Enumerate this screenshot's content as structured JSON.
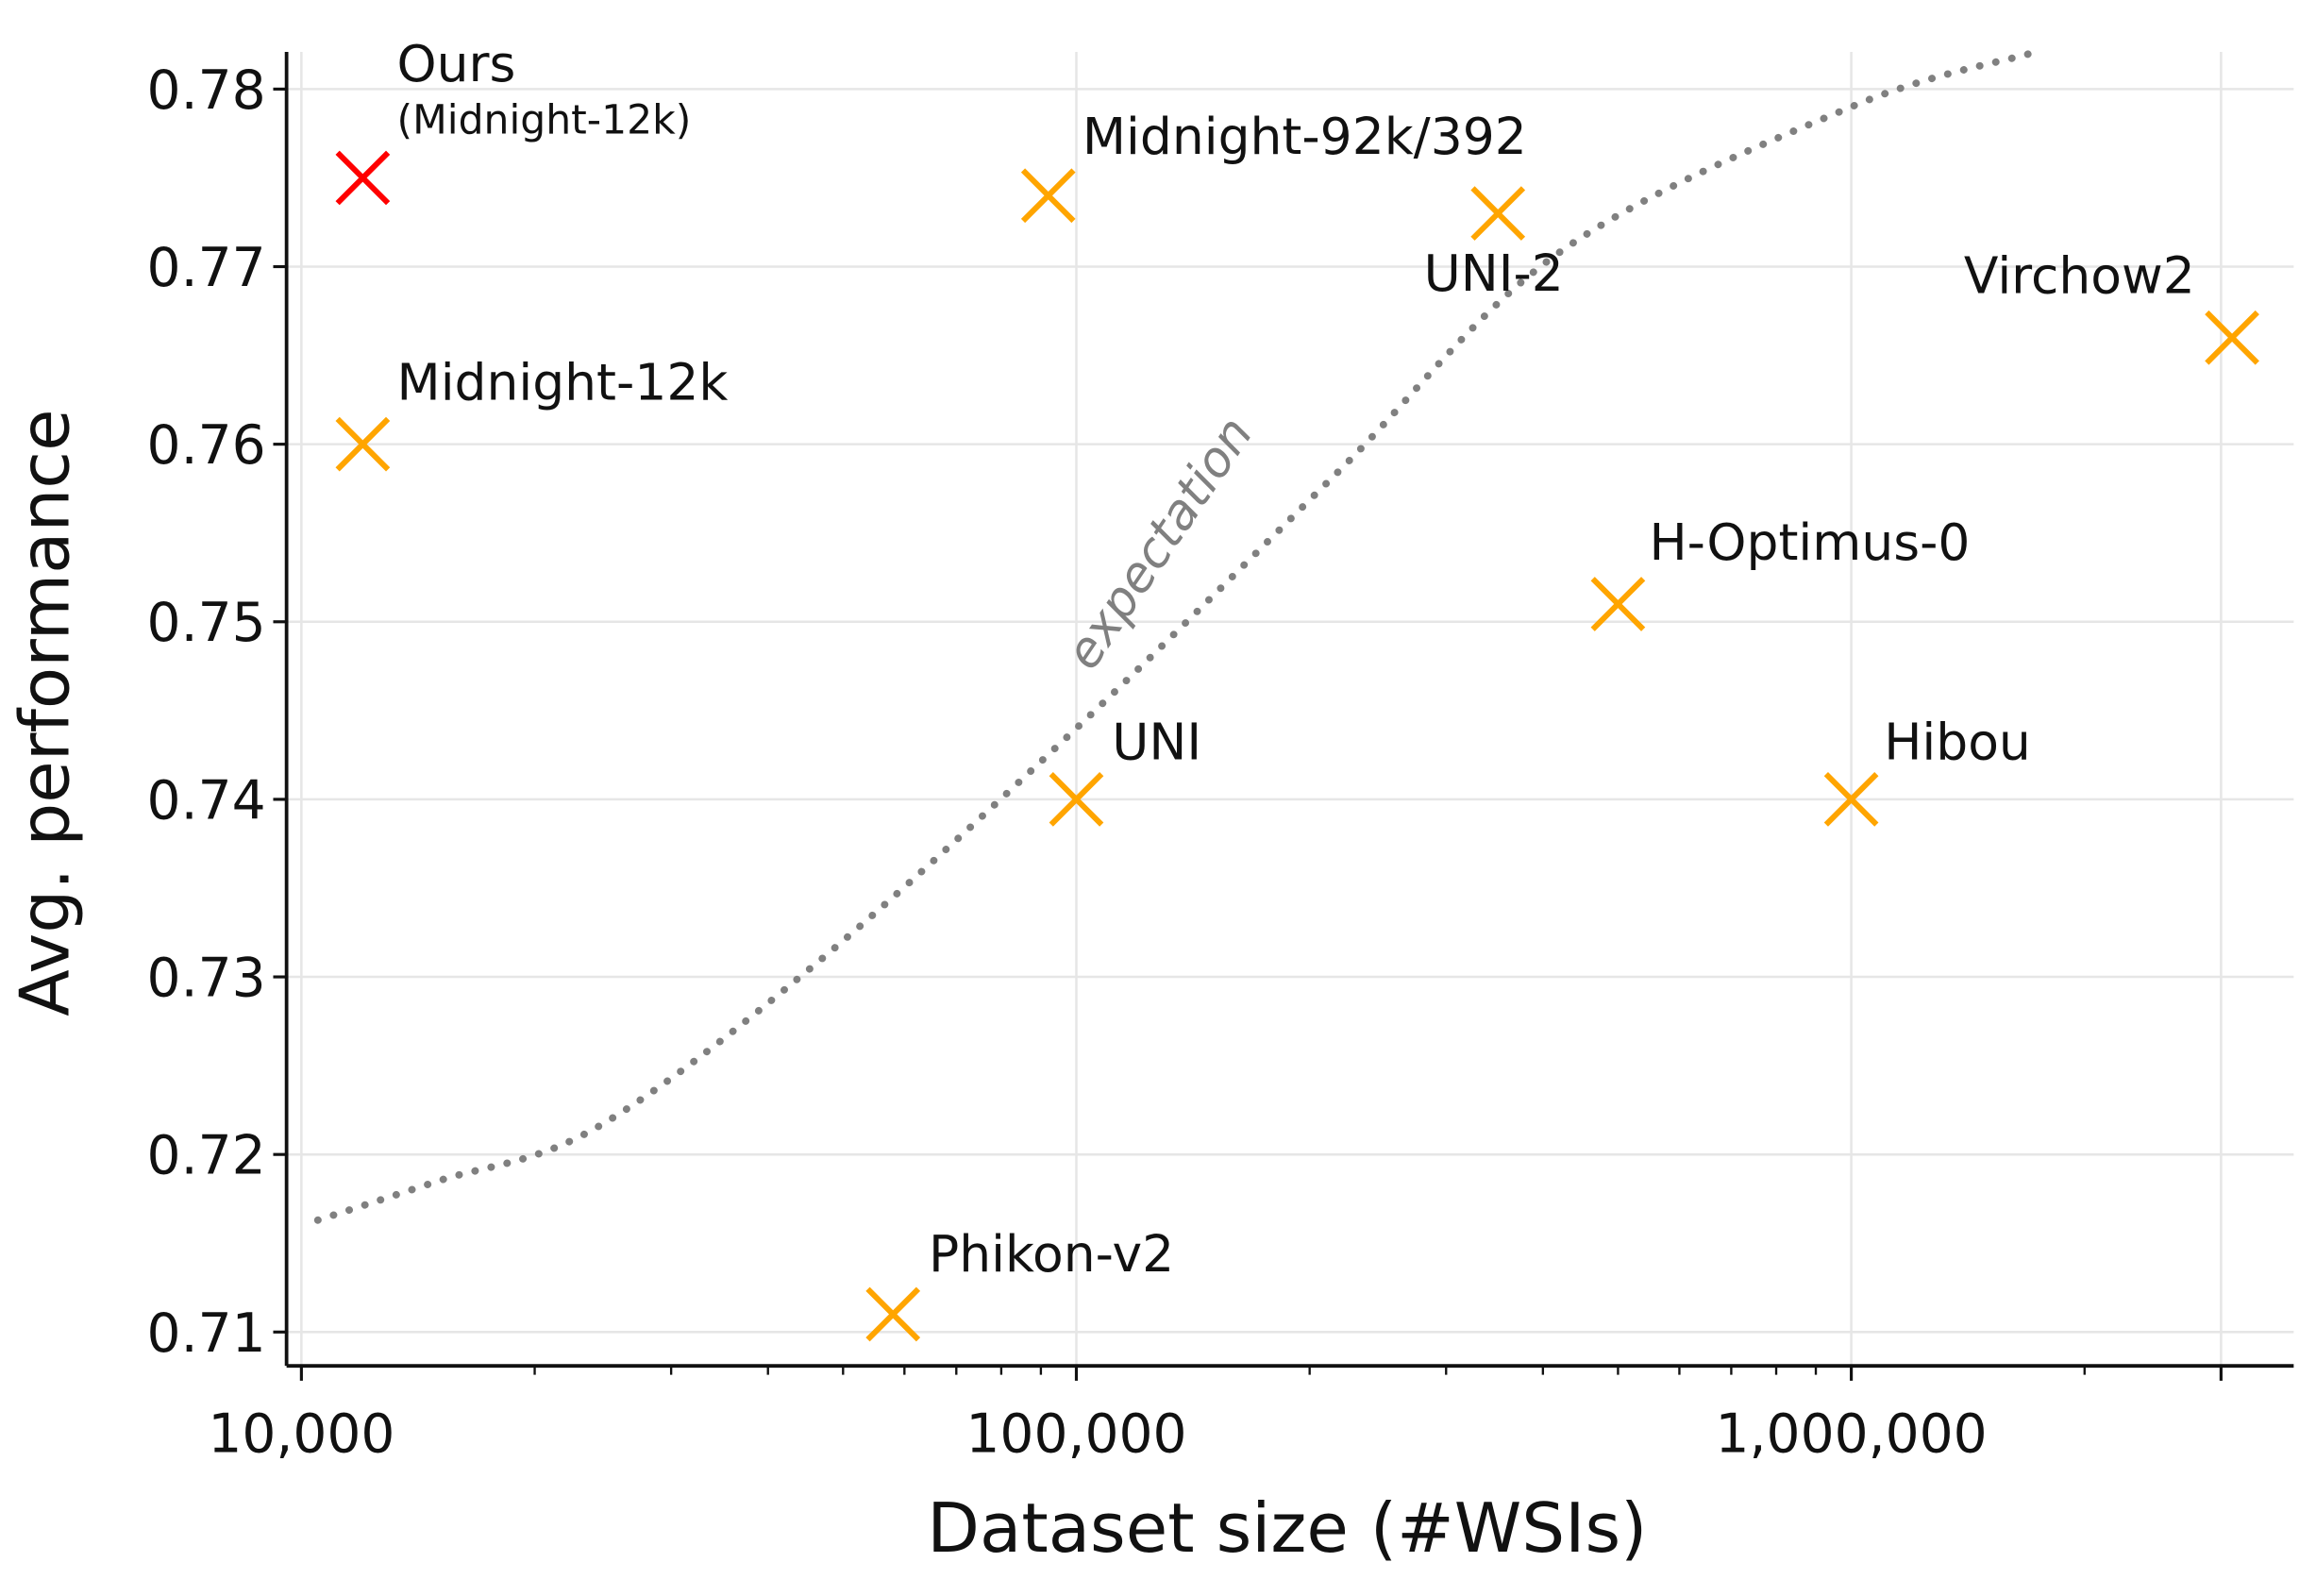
{
  "chart_data": {
    "type": "scatter",
    "title": "",
    "xlabel": "Dataset size (#WSIs)",
    "ylabel": "Avg. performance",
    "xscale": "log",
    "xlim": [
      9500,
      3600000
    ],
    "ylim": [
      0.7075,
      0.7822
    ],
    "grid": true,
    "x_ticks": [
      {
        "value": 10000,
        "label": "10,000"
      },
      {
        "value": 100000,
        "label": "100,000"
      },
      {
        "value": 1000000,
        "label": "1,000,000"
      },
      {
        "value": 3000000,
        "label": ""
      }
    ],
    "y_ticks": [
      {
        "value": 0.71,
        "label": "0.71"
      },
      {
        "value": 0.72,
        "label": "0.72"
      },
      {
        "value": 0.73,
        "label": "0.73"
      },
      {
        "value": 0.74,
        "label": "0.74"
      },
      {
        "value": 0.75,
        "label": "0.75"
      },
      {
        "value": 0.76,
        "label": "0.76"
      },
      {
        "value": 0.77,
        "label": "0.77"
      },
      {
        "value": 0.78,
        "label": "0.78"
      }
    ],
    "points": [
      {
        "label": "Ours",
        "sublabel": "(Midnight-12k)",
        "x": 12000,
        "y": 0.775,
        "color": "#ff0000"
      },
      {
        "label": "Midnight-12k",
        "x": 12000,
        "y": 0.76,
        "color": "#ffa500"
      },
      {
        "label": "Midnight-92k/392",
        "x": 92000,
        "y": 0.774,
        "color": "#ffa500"
      },
      {
        "label": "UNI-2",
        "x": 350000,
        "y": 0.773,
        "color": "#ffa500"
      },
      {
        "label": "Virchow2",
        "x": 3100000,
        "y": 0.766,
        "color": "#ffa500"
      },
      {
        "label": "H-Optimus-0",
        "x": 500000,
        "y": 0.751,
        "color": "#ffa500"
      },
      {
        "label": "UNI",
        "x": 100000,
        "y": 0.74,
        "color": "#ffa500"
      },
      {
        "label": "Hibou",
        "x": 1000000,
        "y": 0.74,
        "color": "#ffa500"
      },
      {
        "label": "Phikon-v2",
        "x": 58000,
        "y": 0.711,
        "color": "#ffa500"
      }
    ],
    "expectation_curve": {
      "label": "expectation",
      "color": "#808080",
      "style": "dotted",
      "x": [
        10500,
        15000,
        24000,
        46000,
        100000,
        216000,
        420000,
        1000000,
        1700000
      ],
      "y": [
        0.7163,
        0.7185,
        0.7215,
        0.7307,
        0.744,
        0.7583,
        0.7708,
        0.779,
        0.782
      ]
    }
  }
}
